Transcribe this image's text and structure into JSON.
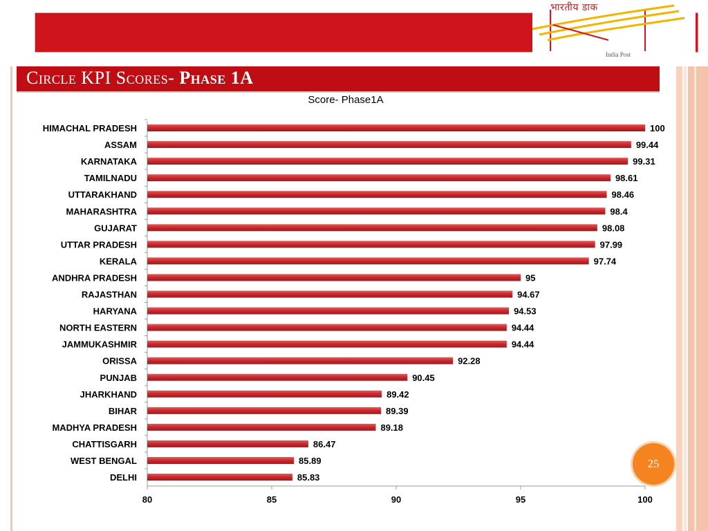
{
  "slide": {
    "title_part1": "Circle KPI Scores- ",
    "title_part2": "Phase 1A",
    "page_number": "25",
    "logo_hindi": "भारतीय डाक",
    "logo_english": "India Post"
  },
  "colors": {
    "bar": "#c9272c",
    "title_bar": "#c00d14",
    "banner": "#d0141b",
    "badge": "#f58320"
  },
  "chart_data": {
    "type": "bar",
    "orientation": "horizontal",
    "title": "Score- Phase1A",
    "categories": [
      "HIMACHAL PRADESH",
      "ASSAM",
      "KARNATAKA",
      "TAMILNADU",
      "UTTARAKHAND",
      "MAHARASHTRA",
      "GUJARAT",
      "UTTAR PRADESH",
      "KERALA",
      "ANDHRA PRADESH",
      "RAJASTHAN",
      "HARYANA",
      "NORTH EASTERN",
      "JAMMUKASHMIR",
      "ORISSA",
      "PUNJAB",
      "JHARKHAND",
      "BIHAR",
      "MADHYA PRADESH",
      "CHATTISGARH",
      "WEST BENGAL",
      "DELHI"
    ],
    "values": [
      100,
      99.44,
      99.31,
      98.61,
      98.46,
      98.4,
      98.08,
      97.99,
      97.74,
      95,
      94.67,
      94.53,
      94.44,
      94.44,
      92.28,
      90.45,
      89.42,
      89.39,
      89.18,
      86.47,
      85.89,
      85.83
    ],
    "value_labels": [
      "100",
      "99.44",
      "99.31",
      "98.61",
      "98.46",
      "98.4",
      "98.08",
      "97.99",
      "97.74",
      "95",
      "94.67",
      "94.53",
      "94.44",
      "94.44",
      "92.28",
      "90.45",
      "89.42",
      "89.39",
      "89.18",
      "86.47",
      "85.89",
      "85.83"
    ],
    "xlim": [
      80,
      100
    ],
    "xticks": [
      80,
      85,
      90,
      95,
      100
    ],
    "grid": false,
    "legend": false
  }
}
